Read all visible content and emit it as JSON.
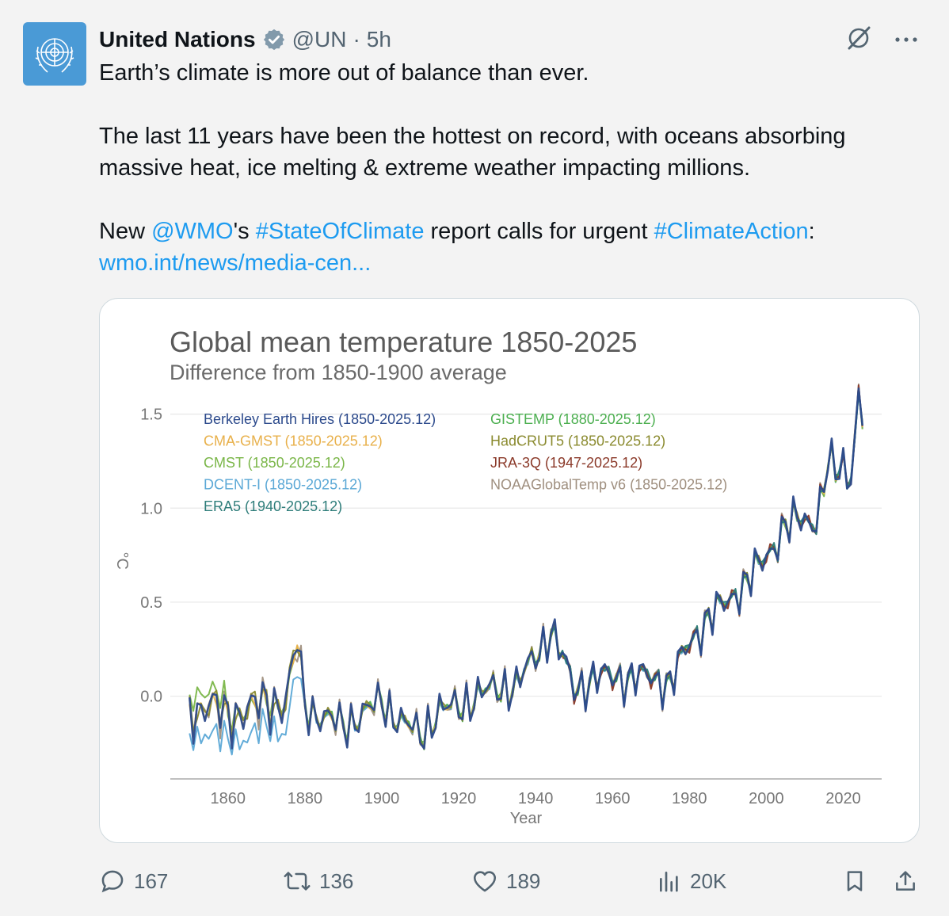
{
  "tweet": {
    "author_name": "United Nations",
    "handle": "@UN",
    "separator": "·",
    "time": "5h",
    "line1": "Earth’s climate is more out of balance than ever.",
    "line2": "The last 11 years have been the hottest on record, with oceans absorbing massive heat, ice melting & extreme weather impacting millions.",
    "line3_prefix": "New ",
    "mention": "@WMO",
    "line3_mid1": "'s ",
    "hashtag1": "#StateOfClimate",
    "line3_mid2": " report calls for urgent ",
    "hashtag2": "#ClimateAction",
    "line3_suffix": ":",
    "url": "wmo.int/news/media-cen..."
  },
  "colors": {
    "link": "#1d9bf0",
    "avatar_bg": "#4a9ad6",
    "verified": "#829aab"
  },
  "icons": {
    "verified": "verified-badge-icon",
    "grok": "grok-icon",
    "more": "more-icon",
    "reply": "reply-icon",
    "retweet": "retweet-icon",
    "like": "like-icon",
    "views": "views-icon",
    "bookmark": "bookmark-icon",
    "share": "share-icon"
  },
  "actions": {
    "replies": "167",
    "retweets": "136",
    "likes": "189",
    "views": "20K"
  },
  "chart_data": {
    "type": "line",
    "title": "Global mean temperature 1850-2025",
    "subtitle": "Difference from 1850-1900 average",
    "xlabel": "Year",
    "ylabel": "°C",
    "xlim": [
      1845,
      2030
    ],
    "ylim": [
      -0.44,
      1.65
    ],
    "x_ticks": [
      1860,
      1880,
      1900,
      1920,
      1940,
      1960,
      1980,
      2000,
      2020
    ],
    "y_ticks": [
      0.0,
      0.5,
      1.0,
      1.5
    ],
    "y_tick_labels": [
      "0.0",
      "0.5",
      "1.0",
      "1.5"
    ],
    "grid": "horizontal",
    "legend_position": "top-left",
    "anomaly_key_years": [
      1850,
      1855,
      1860,
      1865,
      1870,
      1875,
      1878,
      1880,
      1885,
      1890,
      1895,
      1900,
      1905,
      1910,
      1915,
      1920,
      1925,
      1930,
      1935,
      1940,
      1944,
      1950,
      1955,
      1960,
      1965,
      1970,
      1975,
      1980,
      1985,
      1990,
      1995,
      2000,
      2005,
      2010,
      2012,
      2015,
      2016,
      2018,
      2020,
      2021,
      2022,
      2023,
      2024,
      2025
    ],
    "anomaly_key_values": [
      -0.08,
      -0.05,
      -0.1,
      -0.08,
      -0.02,
      -0.05,
      0.3,
      -0.05,
      -0.12,
      -0.15,
      -0.1,
      -0.02,
      -0.14,
      -0.2,
      -0.08,
      -0.05,
      0.0,
      0.05,
      0.05,
      0.22,
      0.35,
      0.05,
      0.08,
      0.12,
      0.08,
      0.12,
      0.05,
      0.3,
      0.4,
      0.52,
      0.6,
      0.75,
      0.9,
      0.95,
      0.92,
      1.08,
      1.28,
      1.15,
      1.28,
      1.12,
      1.18,
      1.46,
      1.55,
      1.45
    ],
    "series": [
      {
        "name": "Berkeley Earth Hires (1850-2025.12)",
        "color": "#2c4a8c",
        "start": 1850
      },
      {
        "name": "CMA-GMST (1850-2025.12)",
        "color": "#e8b04a",
        "start": 1850
      },
      {
        "name": "CMST (1850-2025.12)",
        "color": "#7ab648",
        "start": 1850
      },
      {
        "name": "DCENT-I (1850-2025.12)",
        "color": "#5ba8d6",
        "start": 1850
      },
      {
        "name": "ERA5 (1940-2025.12)",
        "color": "#2e7d7a",
        "start": 1940
      },
      {
        "name": "GISTEMP (1880-2025.12)",
        "color": "#4caf50",
        "start": 1880
      },
      {
        "name": "HadCRUT5 (1850-2025.12)",
        "color": "#8a8a2e",
        "start": 1850
      },
      {
        "name": "JRA-3Q (1947-2025.12)",
        "color": "#8b3a2a",
        "start": 1947
      },
      {
        "name": "NOAAGlobalTemp v6 (1850-2025.12)",
        "color": "#a09080",
        "start": 1850
      }
    ]
  }
}
